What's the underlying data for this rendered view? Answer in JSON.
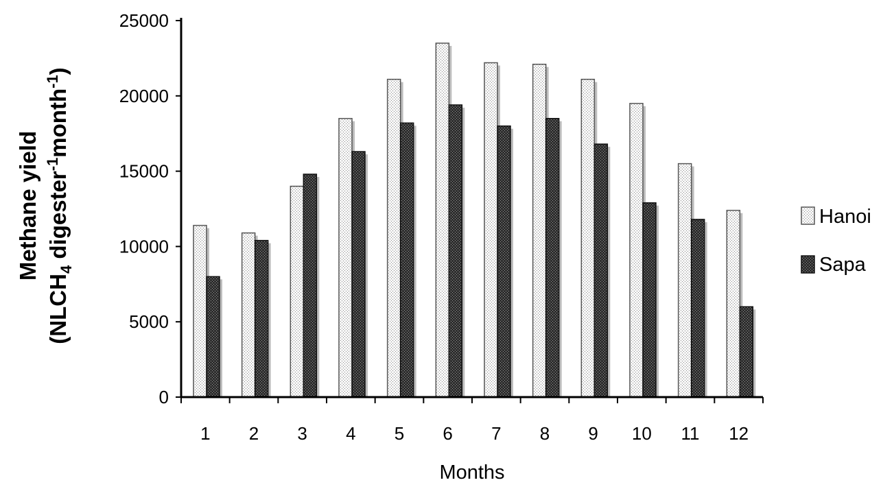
{
  "chart_data": {
    "type": "bar",
    "title": "",
    "xlabel": "Months",
    "ylabel": {
      "line1": "Methane yield",
      "line2_prefix": "(NLCH",
      "line2_sub": "4",
      "line2_mid1": " digester",
      "line2_sup1": "-1",
      "line2_mid2": "month",
      "line2_sup2": "-1",
      "line2_suffix": ")"
    },
    "categories": [
      "1",
      "2",
      "3",
      "4",
      "5",
      "6",
      "7",
      "8",
      "9",
      "10",
      "11",
      "12"
    ],
    "series": [
      {
        "name": "Hanoi",
        "values": [
          11400,
          10900,
          14000,
          18500,
          21100,
          23500,
          22200,
          22100,
          21100,
          19500,
          15500,
          12400
        ]
      },
      {
        "name": "Sapa",
        "values": [
          8000,
          10400,
          14800,
          16300,
          18200,
          19400,
          18000,
          18500,
          16800,
          12900,
          11800,
          6000
        ]
      }
    ],
    "ylim": [
      0,
      25000
    ],
    "yticks": [
      "0",
      "5000",
      "10000",
      "15000",
      "20000",
      "25000"
    ],
    "grid": false,
    "legend_position": "right",
    "colors": {
      "hanoi": "#f2f2f2",
      "sapa": "#3a3a3a",
      "axis": "#000000"
    }
  }
}
